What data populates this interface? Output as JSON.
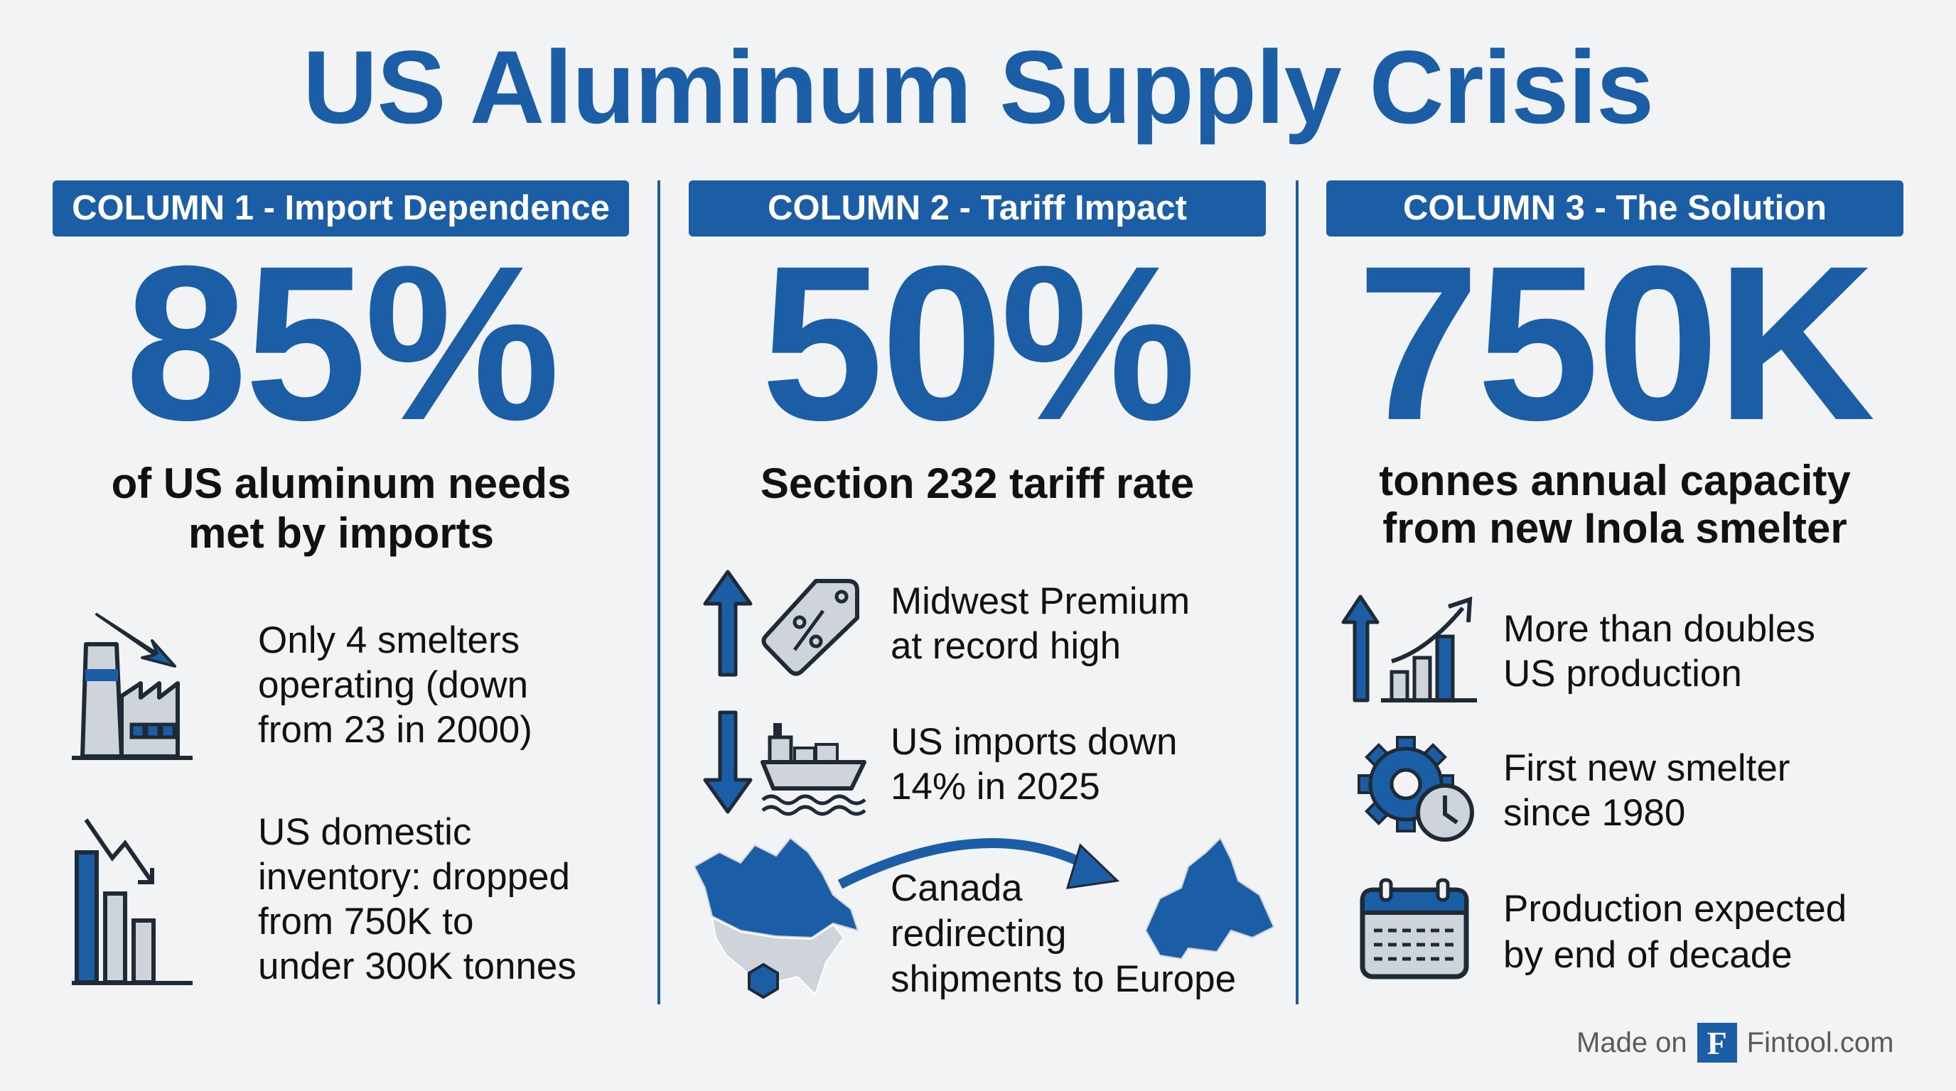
{
  "title": "US Aluminum Supply Crisis",
  "colors": {
    "accent": "#1b5ea6",
    "background": "#f1f3f5",
    "icon_gray": "#cfd4da",
    "icon_outline": "#1f2a37"
  },
  "columns": [
    {
      "header": "COLUMN 1 - Import Dependence",
      "stat": "85%",
      "subtitle": [
        "of US aluminum needs",
        "met by imports"
      ],
      "items": [
        {
          "icon": "factory-down-arrow-icon",
          "lines": [
            "Only 4 smelters",
            "operating (down",
            "from 23 in 2000)"
          ]
        },
        {
          "icon": "declining-bar-chart-icon",
          "lines": [
            "US domestic",
            "inventory: dropped",
            "from 750K to",
            "under 300K tonnes"
          ]
        }
      ]
    },
    {
      "header": "COLUMN 2 - Tariff Impact",
      "stat": "50%",
      "subtitle": [
        "Section 232 tariff rate"
      ],
      "items": [
        {
          "icon": "up-arrow-price-tag-icon",
          "lines": [
            "Midwest Premium",
            "at record high"
          ]
        },
        {
          "icon": "down-arrow-cargo-ship-icon",
          "lines": [
            "US imports down",
            "14% in 2025"
          ]
        },
        {
          "icon": "canada-to-europe-map-icon",
          "lines": [
            "Canada",
            "redirecting",
            "shipments to Europe"
          ]
        }
      ]
    },
    {
      "header": "COLUMN 3 - The Solution",
      "stat": "750K",
      "subtitle": [
        "tonnes annual capacity",
        "from new Inola smelter"
      ],
      "items": [
        {
          "icon": "growth-chart-icon",
          "lines": [
            "More than doubles",
            "US production"
          ]
        },
        {
          "icon": "gear-clock-icon",
          "lines": [
            "First new smelter",
            "since 1980"
          ]
        },
        {
          "icon": "calendar-icon",
          "lines": [
            "Production expected",
            "by end of decade"
          ]
        }
      ]
    }
  ],
  "footer": {
    "prefix": "Made on",
    "logo_letter": "F",
    "brand": "Fintool.com"
  }
}
